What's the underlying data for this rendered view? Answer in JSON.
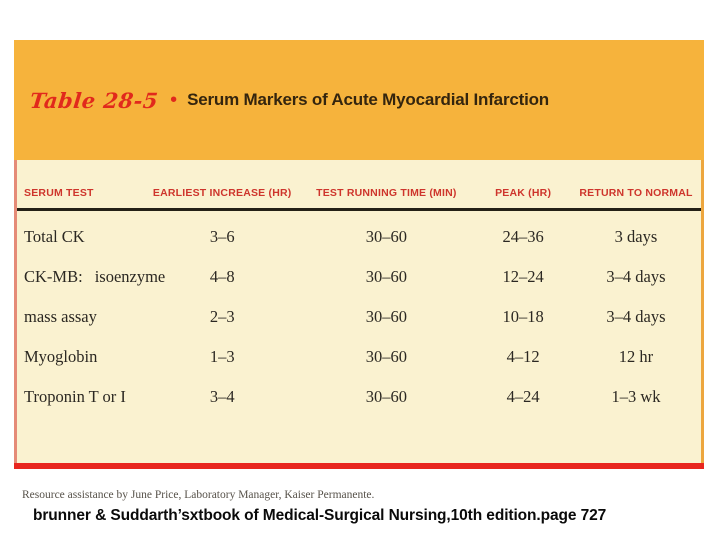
{
  "figure": {
    "label": "Table 28-5",
    "bullet": "•",
    "title": "Serum Markers of Acute Myocardial Infarction",
    "columns": [
      "SERUM TEST",
      "EARLIEST INCREASE (HR)",
      "TEST RUNNING TIME (MIN)",
      "PEAK (HR)",
      "RETURN TO NORMAL"
    ],
    "rows": [
      {
        "serum_test": "Total CK",
        "earliest_increase": "3–6",
        "test_running_time": "30–60",
        "peak": "24–36",
        "return_to_normal": "3 days"
      },
      {
        "serum_test": "CK-MB:",
        "serum_test_sub": "isoenzyme",
        "earliest_increase": "4–8",
        "test_running_time": "30–60",
        "peak": "12–24",
        "return_to_normal": "3–4 days"
      },
      {
        "serum_test": "mass assay",
        "earliest_increase": "2–3",
        "test_running_time": "30–60",
        "peak": "10–18",
        "return_to_normal": "3–4 days"
      },
      {
        "serum_test": "Myoglobin",
        "earliest_increase": "1–3",
        "test_running_time": "30–60",
        "peak": "4–12",
        "return_to_normal": "12 hr"
      },
      {
        "serum_test": "Troponin T or I",
        "earliest_increase": "3–4",
        "test_running_time": "30–60",
        "peak": "4–24",
        "return_to_normal": "1–3 wk"
      }
    ],
    "footnote": "Resource assistance by June Price, Laboratory Manager, Kaiser Permanente."
  },
  "caption": {
    "text": "brunner & Suddarth’sxtbook of Medical-Surgical Nursing,10th edition.page 727"
  },
  "colors": {
    "banner_orange": "#F6B33C",
    "table_cream": "#FAF2D0",
    "header_red": "#CE352C",
    "accent_red": "#E1291C",
    "bottom_rule_red": "#E8261E",
    "header_rule_dark": "#242116"
  }
}
